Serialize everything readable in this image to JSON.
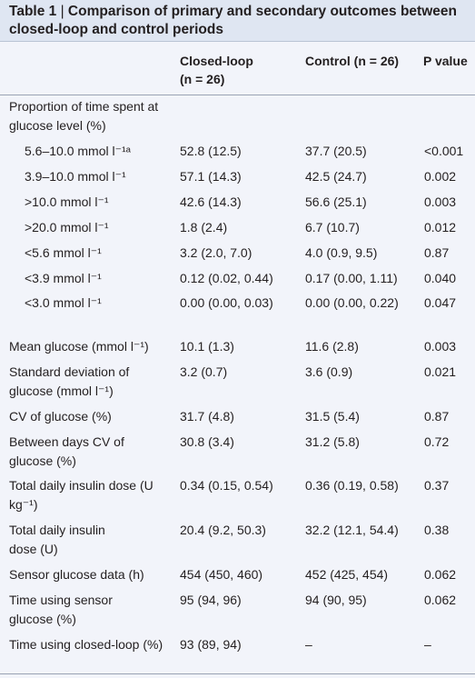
{
  "table": {
    "label": "Table 1",
    "separator": " | ",
    "caption": "Comparison of primary and secondary outcomes between closed-loop and control periods",
    "columns": {
      "closed_loop": "Closed-loop",
      "closed_loop_n": "(n = 26)",
      "control": "Control (n = 26)",
      "p_value": "P value"
    },
    "section_proportion": "Proportion of time spent at glucose level (%)",
    "rows": [
      {
        "label": "5.6–10.0 mmol l⁻¹ᵃ",
        "closed": "52.8 (12.5)",
        "control": "37.7 (20.5)",
        "p": "<0.001"
      },
      {
        "label": "3.9–10.0 mmol l⁻¹",
        "closed": "57.1 (14.3)",
        "control": "42.5 (24.7)",
        "p": "0.002"
      },
      {
        "label": ">10.0 mmol l⁻¹",
        "closed": "42.6 (14.3)",
        "control": "56.6 (25.1)",
        "p": "0.003"
      },
      {
        "label": ">20.0 mmol l⁻¹",
        "closed": "1.8 (2.4)",
        "control": "6.7 (10.7)",
        "p": "0.012"
      },
      {
        "label": "<5.6 mmol l⁻¹",
        "closed": "3.2 (2.0, 7.0)",
        "control": "4.0 (0.9, 9.5)",
        "p": "0.87"
      },
      {
        "label": "<3.9 mmol l⁻¹",
        "closed": "0.12 (0.02, 0.44)",
        "control": "0.17 (0.00, 1.11)",
        "p": "0.040"
      },
      {
        "label": "<3.0 mmol l⁻¹",
        "closed": "0.00 (0.00, 0.03)",
        "control": "0.00 (0.00, 0.22)",
        "p": "0.047"
      },
      {
        "label": "Mean glucose (mmol l⁻¹)",
        "closed": "10.1 (1.3)",
        "control": "11.6 (2.8)",
        "p": "0.003"
      },
      {
        "label": "Standard deviation of glucose (mmol l⁻¹)",
        "closed": "3.2 (0.7)",
        "control": "3.6 (0.9)",
        "p": "0.021"
      },
      {
        "label": "CV of glucose (%)",
        "closed": "31.7 (4.8)",
        "control": "31.5 (5.4)",
        "p": "0.87"
      },
      {
        "label": "Between days CV of glucose (%)",
        "closed": "30.8 (3.4)",
        "control": "31.2 (5.8)",
        "p": "0.72"
      },
      {
        "label": "Total daily insulin dose (U kg⁻¹)",
        "closed": "0.34 (0.15, 0.54)",
        "control": "0.36 (0.19, 0.58)",
        "p": "0.37"
      },
      {
        "label": "Total daily insulin dose (U)",
        "closed": "20.4 (9.2, 50.3)",
        "control": "32.2 (12.1, 54.4)",
        "p": "0.38"
      },
      {
        "label": "Sensor glucose data (h)",
        "closed": "454 (450, 460)",
        "control": "452 (425, 454)",
        "p": "0.062"
      },
      {
        "label": "Time using sensor glucose (%)",
        "closed": "95 (94, 96)",
        "control": "94 (90, 95)",
        "p": "0.062"
      },
      {
        "label": "Time using closed-loop (%)",
        "closed": "93 (89, 94)",
        "control": "–",
        "p": "–"
      }
    ]
  }
}
